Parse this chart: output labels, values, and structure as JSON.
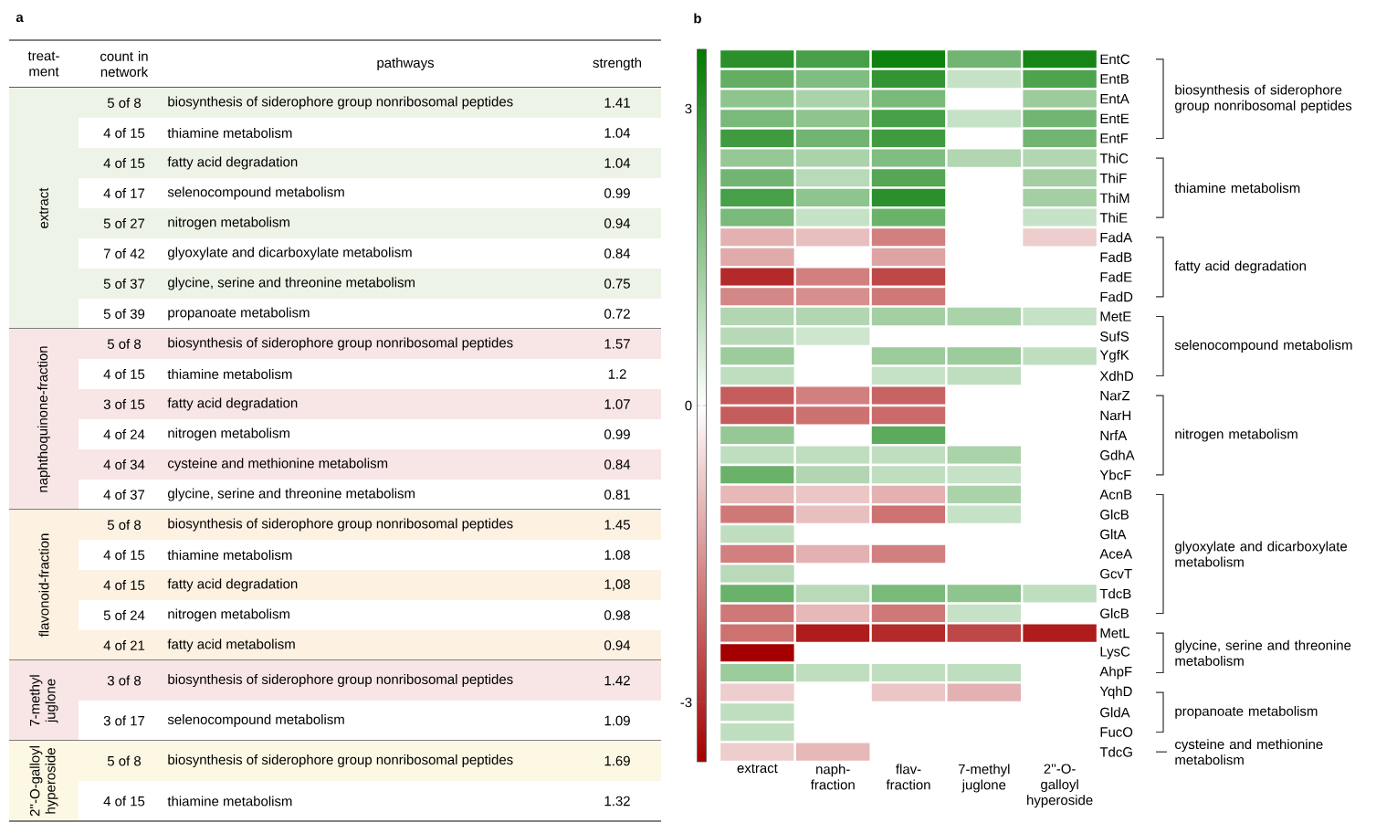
{
  "chart_data": [
    {
      "type": "other",
      "title": "a",
      "categories": [
        "extract",
        "naphthoquinone-fraction",
        "flavonoid-fraction",
        "7-methyl juglone",
        "2''-O-galloyl hyperoside"
      ],
      "annotations": [
        "treat-ment",
        "count in network",
        "pathways",
        "strength",
        "5 of 8",
        "biosynthesis of siderophore group nonribosomal peptides",
        "1.41",
        "4 of 15",
        "thiamine metabolism",
        "1.04",
        "4 of 15",
        "fatty acid degradation",
        "1.04",
        "4 of 17",
        "selenocompound metabolism",
        "0.99",
        "5 of 27",
        "nitrogen metabolism",
        "0.94",
        "7 of 42",
        "glyoxylate and dicarboxylate metabolism",
        "0.84",
        "5 of 37",
        "glycine, serine and threonine metabolism",
        "0.75",
        "5 of 39",
        "propanoate metabolism",
        "0.72",
        "5 of 8",
        "biosynthesis of siderophore group nonribosomal peptides",
        "1.57",
        "4 of 15",
        "thiamine metabolism",
        "1.2",
        "3 of 15",
        "fatty acid degradation",
        "1.07",
        "4 of 24",
        "nitrogen metabolism",
        "0.99",
        "4 of 34",
        "cysteine and methionine metabolism",
        "0.84",
        "4 of 37",
        "glycine, serine and threonine metabolism",
        "0.81",
        "5 of 8",
        "biosynthesis of siderophore group nonribosomal peptides",
        "1.45",
        "4 of 15",
        "thiamine metabolism",
        "1.08",
        "4 of 15",
        "fatty acid degradation",
        "1,08",
        "5 of 24",
        "nitrogen metabolism",
        "0.98",
        "4 of 21",
        "fatty acid metabolism",
        "0.94",
        "3 of 8",
        "biosynthesis of siderophore group nonribosomal peptides",
        "1.42",
        "3 of 17",
        "selenocompound metabolism",
        "1.09",
        "5 of 8",
        "biosynthesis of siderophore group nonribosomal peptides",
        "1.69",
        "4 of 15",
        "thiamine metabolism",
        "1.32"
      ]
    },
    {
      "type": "heatmap",
      "title": "b",
      "categories": [
        "extract",
        "naph-fraction",
        "flav-fraction",
        "7-methyl juglone",
        "2''-O-galloyl hyperoside"
      ],
      "y_categories": [
        "EntC",
        "EntB",
        "EntA",
        "EntE",
        "EntF",
        "ThiC",
        "ThiF",
        "ThiM",
        "ThiE",
        "FadA",
        "FadB",
        "FadE",
        "FadD",
        "MetE",
        "SufS",
        "YgfK",
        "XdhD",
        "NarZ",
        "NarH",
        "NrfA",
        "GdhA",
        "YbcF",
        "AcnB",
        "GlcB",
        "GltA",
        "AceA",
        "GcvT",
        "TdcB",
        "GlcB",
        "MetL",
        "LysC",
        "AhpF",
        "YqhD",
        "GldA",
        "FucO",
        "TdcG"
      ],
      "cells": [
        [
          3.0,
          2.6,
          3.4,
          2.0,
          3.3
        ],
        [
          2.2,
          1.8,
          2.9,
          0.8,
          2.5
        ],
        [
          1.6,
          1.2,
          1.9,
          null,
          1.4
        ],
        [
          1.9,
          1.6,
          2.6,
          0.8,
          2.0
        ],
        [
          2.7,
          2.0,
          2.7,
          null,
          2.0
        ],
        [
          1.5,
          1.2,
          1.8,
          1.1,
          1.1
        ],
        [
          2.0,
          1.0,
          2.4,
          null,
          1.3
        ],
        [
          2.6,
          1.6,
          3.0,
          null,
          1.3
        ],
        [
          1.9,
          0.8,
          2.1,
          null,
          0.8
        ],
        [
          -1.1,
          -0.9,
          -1.8,
          null,
          -0.7
        ],
        [
          -1.2,
          null,
          -1.3,
          null,
          null
        ],
        [
          -3.0,
          -1.8,
          -2.6,
          null,
          null
        ],
        [
          -1.7,
          -1.6,
          -1.9,
          null,
          null
        ],
        [
          1.1,
          1.1,
          1.3,
          1.2,
          0.8
        ],
        [
          1.0,
          0.7,
          null,
          null,
          null
        ],
        [
          1.4,
          null,
          1.4,
          1.4,
          0.9
        ],
        [
          0.9,
          null,
          0.8,
          0.9,
          null
        ],
        [
          -2.3,
          -1.8,
          -2.2,
          null,
          null
        ],
        [
          -2.3,
          -2.0,
          -2.1,
          null,
          null
        ],
        [
          1.5,
          null,
          2.3,
          null,
          null
        ],
        [
          0.9,
          0.9,
          0.9,
          1.2,
          null
        ],
        [
          2.1,
          1.1,
          0.9,
          0.8,
          null
        ],
        [
          -1.0,
          -0.8,
          -1.1,
          1.2,
          null
        ],
        [
          -1.9,
          -0.9,
          -2.0,
          0.8,
          null
        ],
        [
          0.9,
          null,
          null,
          null,
          null
        ],
        [
          -1.8,
          -1.1,
          -1.8,
          null,
          null
        ],
        [
          1.0,
          null,
          null,
          null,
          null
        ],
        [
          2.1,
          1.0,
          1.9,
          1.6,
          0.9
        ],
        [
          -1.9,
          -1.0,
          -1.9,
          0.8,
          null
        ],
        [
          -2.0,
          -3.2,
          -3.0,
          -2.6,
          -3.2
        ],
        [
          -3.6,
          null,
          null,
          null,
          null
        ],
        [
          1.4,
          0.9,
          0.9,
          0.9,
          null
        ],
        [
          -0.7,
          null,
          -0.8,
          -1.1,
          null
        ],
        [
          0.9,
          null,
          null,
          null,
          null
        ],
        [
          0.9,
          null,
          null,
          null,
          null
        ],
        [
          -0.7,
          -1.0,
          null,
          null,
          null
        ]
      ],
      "clim": [
        -3.6,
        3.6
      ],
      "cticks": [
        3,
        0,
        -3
      ],
      "annotations": [
        "biosynthesis of siderophore group nonribosomal peptides",
        "thiamine metabolism",
        "fatty acid degradation",
        "selenocompound metabolism",
        "nitrogen metabolism",
        "glyoxylate and dicarboxylate metabolism",
        "glycine, serine and threonine metabolism",
        "propanoate metabolism",
        "cysteine and methionine metabolism"
      ]
    }
  ]
}
